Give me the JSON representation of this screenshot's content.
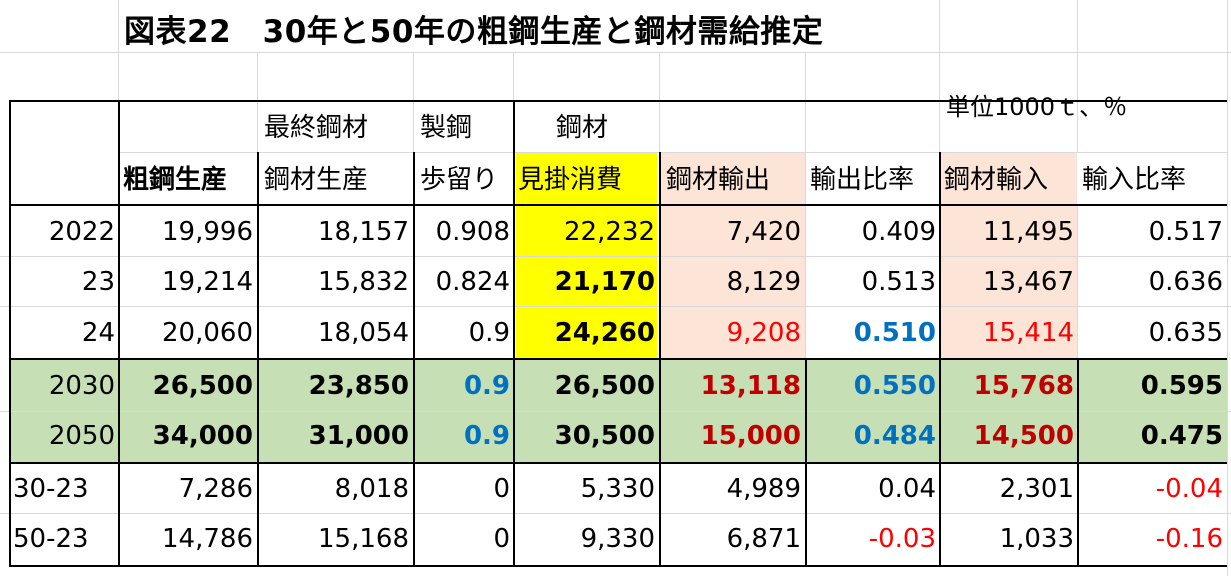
{
  "title": "図表22　30年と50年の粗鋼生産と鋼材需給推定",
  "unit": "単位1000ｔ、％",
  "header_row1": {
    "final": "最終鋼材",
    "steelmaking": "製鋼",
    "steel": "鋼材"
  },
  "header_row2": {
    "crude": "粗鋼生産",
    "prod": "鋼材生産",
    "yield": "歩留り",
    "apparent": "見掛消費",
    "export": "鋼材輸出",
    "export_ratio": "輸出比率",
    "import": "鋼材輸入",
    "import_ratio": "輸入比率"
  },
  "rows": [
    {
      "year": "2022",
      "crude": "19,996",
      "prod": "18,157",
      "yield": "0.908",
      "apparent": "22,232",
      "export": "7,420",
      "export_ratio": "0.409",
      "import": "11,495",
      "import_ratio": "0.517"
    },
    {
      "year": "23",
      "crude": "19,214",
      "prod": "15,832",
      "yield": "0.824",
      "apparent": "21,170",
      "export": "8,129",
      "export_ratio": "0.513",
      "import": "13,467",
      "import_ratio": "0.636"
    },
    {
      "year": "24",
      "crude": "20,060",
      "prod": "18,054",
      "yield": "0.9",
      "apparent": "24,260",
      "export": "9,208",
      "export_ratio": "0.510",
      "import": "15,414",
      "import_ratio": "0.635"
    },
    {
      "year": "2030",
      "crude": "26,500",
      "prod": "23,850",
      "yield": "0.9",
      "apparent": "26,500",
      "export": "13,118",
      "export_ratio": "0.550",
      "import": "15,768",
      "import_ratio": "0.595"
    },
    {
      "year": "2050",
      "crude": "34,000",
      "prod": "31,000",
      "yield": "0.9",
      "apparent": "30,500",
      "export": "15,000",
      "export_ratio": "0.484",
      "import": "14,500",
      "import_ratio": "0.475"
    },
    {
      "year": "30-23",
      "crude": "7,286",
      "prod": "8,018",
      "yield": "0",
      "apparent": "5,330",
      "export": "4,989",
      "export_ratio": "0.04",
      "import": "2,301",
      "import_ratio": "-0.04"
    },
    {
      "year": "50-23",
      "crude": "14,786",
      "prod": "15,168",
      "yield": "0",
      "apparent": "9,330",
      "export": "6,871",
      "export_ratio": "-0.03",
      "import": "1,033",
      "import_ratio": "-0.16"
    }
  ],
  "colors": {
    "green_fill": "#c6dfb4",
    "yellow_fill": "#ffff00",
    "peach_fill": "#fce4d6",
    "blue_text": "#0070c0",
    "red_text": "#c00000",
    "bright_red_text": "#ff0000"
  }
}
